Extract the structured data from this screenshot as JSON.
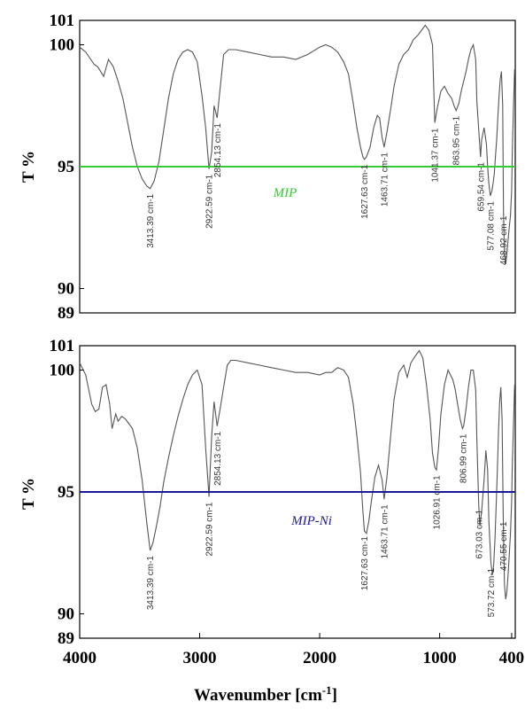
{
  "chart_data": [
    {
      "type": "line",
      "title": "",
      "sample_label": "MIP",
      "ylabel": "T %",
      "xlabel": "",
      "xlim": [
        4000,
        370
      ],
      "ylim": [
        89,
        101
      ],
      "yticks": [
        89,
        90,
        95,
        100,
        101
      ],
      "xticks": [],
      "reference_line": {
        "y": 95.0,
        "color": "#33cc33"
      },
      "line_color": "#555555",
      "series": [
        {
          "x": [
            4000,
            3950,
            3880,
            3850,
            3800,
            3760,
            3720,
            3680,
            3640,
            3600,
            3560,
            3520,
            3480,
            3440,
            3413,
            3380,
            3340,
            3300,
            3260,
            3220,
            3180,
            3140,
            3100,
            3060,
            3020,
            2980,
            2950,
            2922,
            2900,
            2880,
            2854,
            2830,
            2800,
            2760,
            2700,
            2600,
            2500,
            2400,
            2300,
            2200,
            2100,
            2000,
            1950,
            1900,
            1850,
            1800,
            1760,
            1720,
            1690,
            1660,
            1640,
            1627,
            1610,
            1580,
            1550,
            1520,
            1500,
            1480,
            1463,
            1440,
            1410,
            1380,
            1340,
            1300,
            1260,
            1220,
            1180,
            1150,
            1120,
            1090,
            1060,
            1041,
            1020,
            990,
            960,
            930,
            900,
            880,
            863,
            840,
            820,
            800,
            780,
            760,
            740,
            720,
            700,
            690,
            670,
            659,
            650,
            630,
            610,
            600,
            590,
            577,
            565,
            555,
            545,
            535,
            525,
            515,
            505,
            495,
            485,
            475,
            468,
            460,
            450,
            440,
            430,
            420,
            410,
            400,
            395,
            385,
            375
          ],
          "y": [
            99.9,
            99.7,
            99.2,
            99.1,
            98.7,
            99.4,
            99.1,
            98.5,
            97.8,
            96.8,
            95.8,
            95.0,
            94.5,
            94.2,
            94.1,
            94.4,
            95.2,
            96.5,
            97.8,
            98.8,
            99.4,
            99.7,
            99.8,
            99.7,
            99.3,
            97.9,
            96.6,
            94.9,
            95.6,
            97.5,
            97.0,
            98.2,
            99.6,
            99.8,
            99.8,
            99.7,
            99.6,
            99.5,
            99.5,
            99.4,
            99.6,
            99.9,
            100.0,
            99.9,
            99.7,
            99.3,
            98.8,
            97.6,
            96.6,
            95.8,
            95.4,
            95.3,
            95.4,
            95.8,
            96.6,
            97.1,
            97.0,
            96.2,
            95.8,
            96.4,
            97.3,
            98.3,
            99.2,
            99.6,
            99.8,
            100.2,
            100.4,
            100.6,
            100.8,
            100.6,
            100.0,
            96.8,
            97.4,
            98.1,
            98.3,
            98.0,
            97.8,
            97.5,
            97.3,
            97.6,
            98.1,
            98.5,
            98.9,
            99.4,
            99.8,
            100.0,
            99.4,
            97.7,
            96.2,
            95.4,
            96.1,
            96.6,
            95.9,
            95.0,
            94.3,
            93.8,
            94.0,
            94.3,
            94.7,
            95.4,
            96.1,
            97.0,
            97.9,
            98.6,
            98.9,
            97.5,
            93.2,
            91.4,
            91.0,
            91.4,
            92.0,
            92.5,
            93.0,
            94.0,
            95.5,
            97.5,
            99.0
          ]
        }
      ],
      "peak_labels": [
        {
          "x": 3413.39,
          "text": "3413.39 cm-1"
        },
        {
          "x": 2922.59,
          "text": "2922.59 cm-1"
        },
        {
          "x": 2854.13,
          "text": "2854.13 cm-1"
        },
        {
          "x": 1627.63,
          "text": "1627.63 cm-1"
        },
        {
          "x": 1463.71,
          "text": "1463.71 cm-1"
        },
        {
          "x": 1041.37,
          "text": "1041.37 cm-1"
        },
        {
          "x": 863.95,
          "text": "863.95 cm-1"
        },
        {
          "x": 659.54,
          "text": "659.54 cm-1"
        },
        {
          "x": 577.08,
          "text": "577.08 cm-1"
        },
        {
          "x": 468.92,
          "text": "468.92 cm-1"
        }
      ]
    },
    {
      "type": "line",
      "title": "",
      "sample_label": "MIP-Ni",
      "ylabel": "T %",
      "xlabel": "Wavenumber [cm-1]",
      "xlim": [
        4000,
        370
      ],
      "ylim": [
        89,
        101
      ],
      "yticks": [
        89,
        90,
        95,
        100,
        101
      ],
      "xticks": [
        4000,
        3000,
        2000,
        1000,
        400
      ],
      "reference_line": {
        "y": 95.0,
        "color": "#1a1a99"
      },
      "line_color": "#555555",
      "series": [
        {
          "x": [
            4000,
            3950,
            3900,
            3870,
            3840,
            3810,
            3780,
            3750,
            3730,
            3700,
            3680,
            3650,
            3620,
            3590,
            3560,
            3520,
            3480,
            3440,
            3413,
            3390,
            3360,
            3330,
            3300,
            3260,
            3220,
            3180,
            3140,
            3100,
            3060,
            3020,
            2980,
            2950,
            2922,
            2900,
            2880,
            2854,
            2830,
            2800,
            2770,
            2740,
            2700,
            2600,
            2500,
            2400,
            2300,
            2200,
            2100,
            2000,
            1950,
            1900,
            1850,
            1800,
            1760,
            1720,
            1690,
            1660,
            1640,
            1627,
            1610,
            1590,
            1570,
            1540,
            1510,
            1480,
            1463,
            1440,
            1410,
            1380,
            1340,
            1300,
            1270,
            1240,
            1200,
            1170,
            1140,
            1110,
            1080,
            1060,
            1040,
            1027,
            1010,
            990,
            960,
            930,
            910,
            890,
            870,
            850,
            830,
            810,
            800,
            780,
            760,
            740,
            720,
            700,
            690,
            675,
            665,
            650,
            630,
            615,
            600,
            590,
            573,
            560,
            550,
            540,
            530,
            520,
            510,
            500,
            490,
            480,
            470,
            460,
            450,
            440,
            430,
            420,
            410,
            400,
            395,
            385,
            375
          ],
          "y": [
            100.3,
            99.8,
            98.6,
            98.3,
            98.4,
            99.3,
            99.4,
            98.6,
            97.6,
            98.2,
            97.9,
            98.1,
            98.0,
            97.8,
            97.6,
            96.8,
            95.5,
            93.7,
            92.6,
            92.9,
            93.6,
            94.4,
            95.4,
            96.4,
            97.3,
            98.1,
            98.8,
            99.4,
            99.8,
            100.0,
            99.4,
            96.8,
            94.8,
            97.3,
            98.7,
            97.7,
            98.4,
            99.3,
            100.2,
            100.4,
            100.4,
            100.3,
            100.2,
            100.1,
            100.0,
            99.9,
            99.9,
            99.8,
            99.9,
            99.9,
            100.1,
            100.0,
            99.7,
            98.6,
            97.3,
            95.8,
            94.2,
            93.4,
            93.3,
            93.8,
            94.6,
            95.6,
            96.1,
            95.5,
            94.7,
            95.6,
            97.2,
            98.8,
            99.9,
            100.2,
            99.7,
            100.3,
            100.6,
            100.8,
            100.5,
            99.4,
            98.0,
            96.6,
            96.0,
            95.9,
            96.8,
            98.2,
            99.4,
            100.0,
            99.8,
            99.6,
            99.2,
            98.6,
            98.0,
            97.6,
            97.7,
            98.4,
            99.3,
            100.0,
            100.0,
            99.2,
            97.2,
            94.5,
            93.6,
            94.2,
            95.5,
            96.7,
            95.9,
            93.8,
            92.1,
            91.6,
            92.0,
            93.0,
            94.3,
            95.8,
            97.4,
            98.7,
            99.3,
            98.0,
            94.0,
            91.2,
            90.6,
            90.9,
            91.6,
            92.4,
            93.3,
            94.6,
            96.0,
            97.8,
            99.4
          ]
        }
      ],
      "peak_labels": [
        {
          "x": 3413.39,
          "text": "3413.39 cm-1"
        },
        {
          "x": 2922.59,
          "text": "2922.59 cm-1"
        },
        {
          "x": 2854.13,
          "text": "2854.13 cm-1"
        },
        {
          "x": 1627.63,
          "text": "1627.63 cm-1"
        },
        {
          "x": 1463.71,
          "text": "1463.71 cm-1"
        },
        {
          "x": 1026.91,
          "text": "1026.91 cm-1"
        },
        {
          "x": 806.99,
          "text": "806.99 cm-1"
        },
        {
          "x": 673.03,
          "text": "673.03 cm-1"
        },
        {
          "x": 573.72,
          "text": "573.72 cm-1"
        },
        {
          "x": 470.55,
          "text": "470.55 cm-1"
        }
      ]
    }
  ]
}
